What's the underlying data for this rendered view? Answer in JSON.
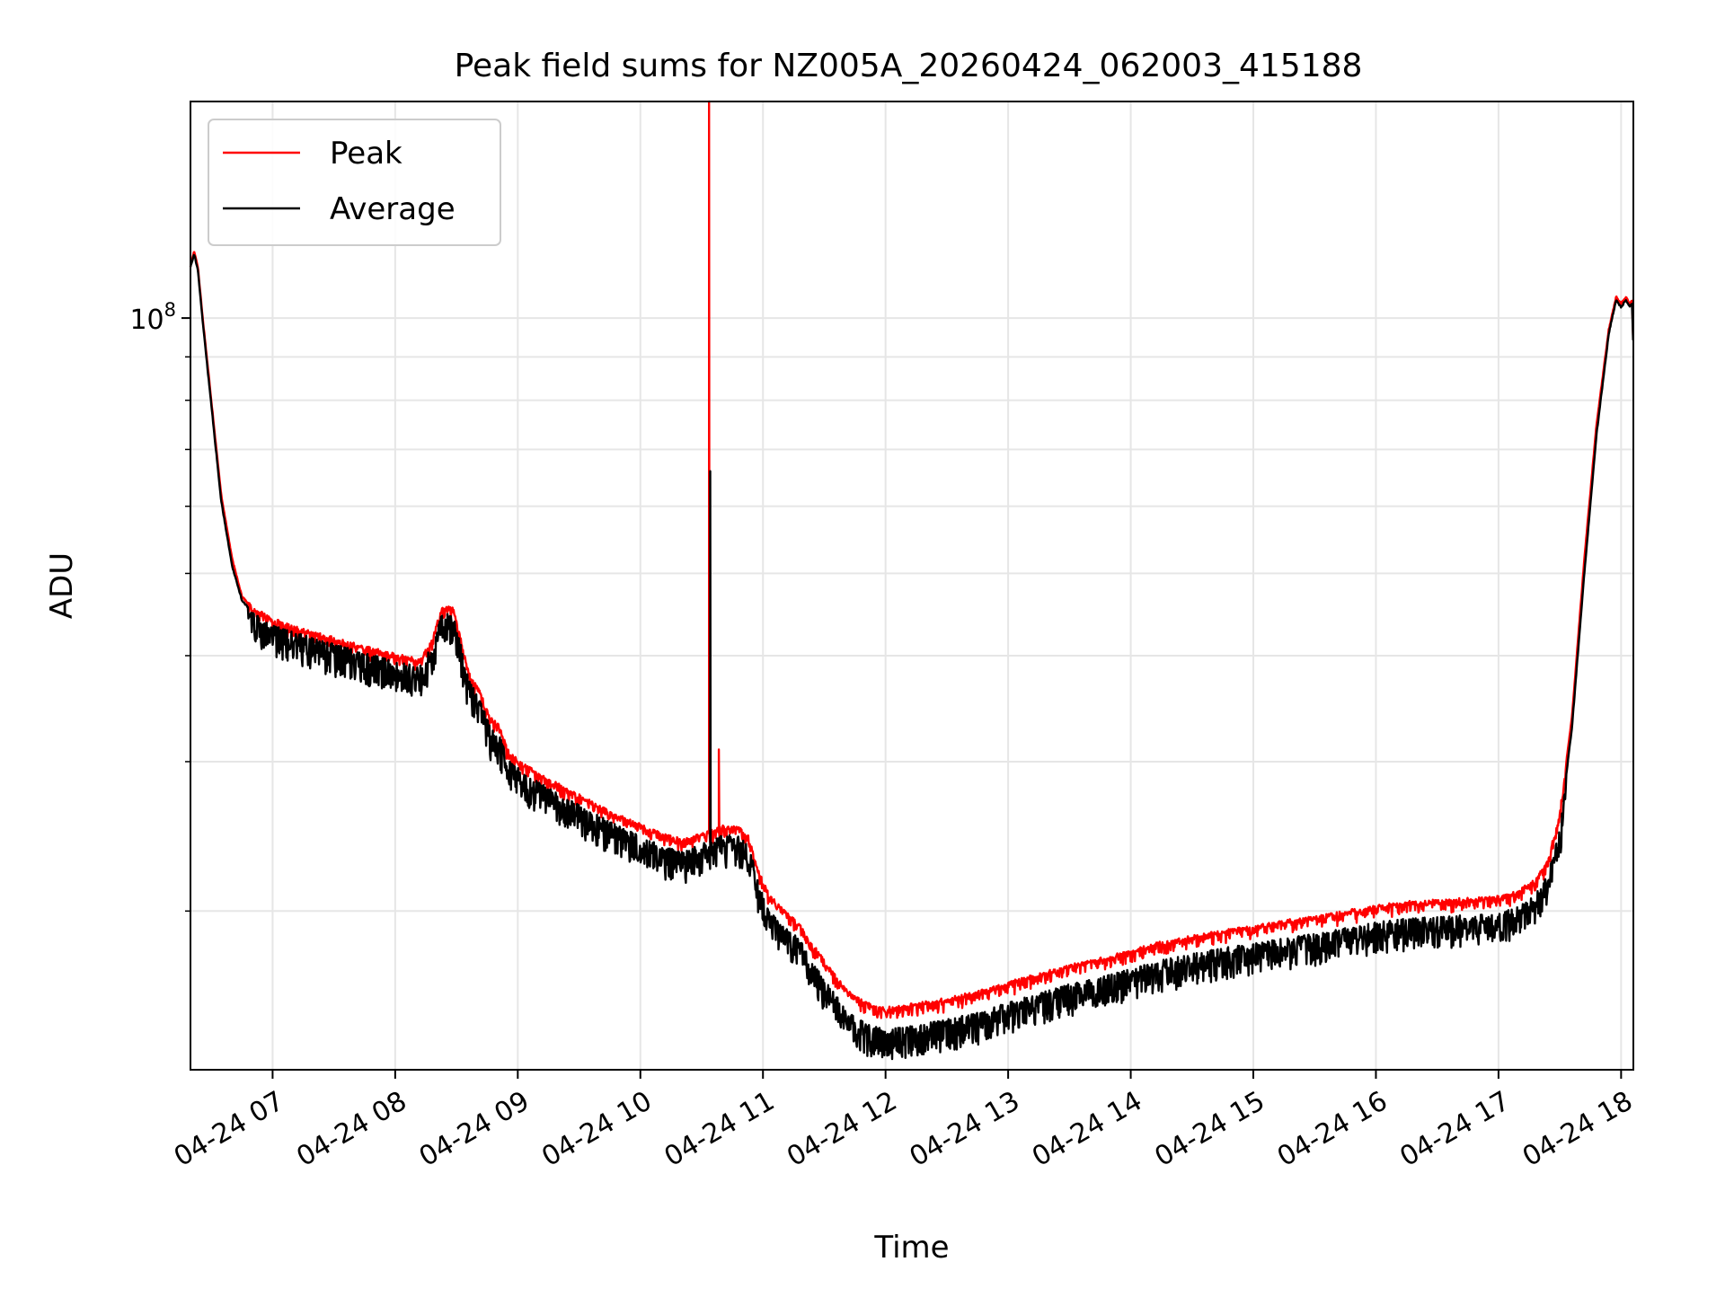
{
  "chart_data": {
    "type": "line",
    "title": "Peak field sums for NZ005A_20260424_062003_415188",
    "xlabel": "Time",
    "ylabel": "ADU",
    "y_scale": "log",
    "xlim_hours": [
      6.33,
      18.1
    ],
    "ylim": [
      13000000,
      180000000
    ],
    "x_ticks": [
      {
        "value": 7,
        "label": "04-24 07"
      },
      {
        "value": 8,
        "label": "04-24 08"
      },
      {
        "value": 9,
        "label": "04-24 09"
      },
      {
        "value": 10,
        "label": "04-24 10"
      },
      {
        "value": 11,
        "label": "04-24 11"
      },
      {
        "value": 12,
        "label": "04-24 12"
      },
      {
        "value": 13,
        "label": "04-24 13"
      },
      {
        "value": 14,
        "label": "04-24 14"
      },
      {
        "value": 15,
        "label": "04-24 15"
      },
      {
        "value": 16,
        "label": "04-24 16"
      },
      {
        "value": 17,
        "label": "04-24 17"
      },
      {
        "value": 18,
        "label": "04-24 18"
      }
    ],
    "y_major_ticks": [
      {
        "value": 100000000,
        "base": "10",
        "exp": "8"
      }
    ],
    "y_minor_ticks": [
      20000000,
      30000000,
      40000000,
      50000000,
      60000000,
      70000000,
      80000000,
      90000000
    ],
    "grid": true,
    "legend_position": "top-left",
    "series": [
      {
        "name": "Peak",
        "color": "#ff0000",
        "points": [
          [
            6.33,
            115000000
          ],
          [
            6.36,
            120000000
          ],
          [
            6.39,
            115000000
          ],
          [
            6.43,
            100000000
          ],
          [
            6.5,
            80000000
          ],
          [
            6.58,
            62000000
          ],
          [
            6.67,
            52000000
          ],
          [
            6.75,
            47000000
          ],
          [
            6.83,
            45500000
          ],
          [
            7.0,
            44000000
          ],
          [
            7.25,
            42800000
          ],
          [
            7.5,
            41800000
          ],
          [
            7.75,
            40800000
          ],
          [
            8.0,
            40000000
          ],
          [
            8.2,
            39400000
          ],
          [
            8.3,
            41500000
          ],
          [
            8.38,
            45500000
          ],
          [
            8.47,
            45500000
          ],
          [
            8.53,
            42000000
          ],
          [
            8.6,
            38000000
          ],
          [
            8.7,
            36000000
          ],
          [
            8.78,
            33600000
          ],
          [
            8.85,
            33000000
          ],
          [
            8.92,
            30800000
          ],
          [
            9.0,
            30000000
          ],
          [
            9.2,
            28800000
          ],
          [
            9.5,
            27300000
          ],
          [
            9.75,
            26100000
          ],
          [
            10.0,
            25200000
          ],
          [
            10.2,
            24500000
          ],
          [
            10.35,
            24200000
          ],
          [
            10.5,
            24600000
          ],
          [
            10.6,
            24800000
          ],
          [
            10.67,
            25100000
          ],
          [
            10.8,
            25000000
          ],
          [
            10.88,
            24400000
          ],
          [
            10.95,
            22500000
          ],
          [
            11.05,
            20800000
          ],
          [
            11.3,
            19200000
          ],
          [
            11.5,
            17400000
          ],
          [
            11.7,
            16000000
          ],
          [
            11.85,
            15500000
          ],
          [
            12.0,
            15300000
          ],
          [
            12.25,
            15500000
          ],
          [
            12.5,
            15700000
          ],
          [
            12.75,
            16000000
          ],
          [
            13.0,
            16400000
          ],
          [
            13.25,
            16800000
          ],
          [
            13.5,
            17200000
          ],
          [
            13.75,
            17500000
          ],
          [
            14.0,
            17900000
          ],
          [
            14.25,
            18300000
          ],
          [
            14.5,
            18600000
          ],
          [
            14.75,
            18900000
          ],
          [
            15.0,
            19100000
          ],
          [
            15.25,
            19400000
          ],
          [
            15.5,
            19600000
          ],
          [
            15.75,
            19900000
          ],
          [
            16.0,
            20200000
          ],
          [
            16.25,
            20400000
          ],
          [
            16.5,
            20500000
          ],
          [
            16.75,
            20600000
          ],
          [
            17.0,
            20700000
          ],
          [
            17.15,
            21000000
          ],
          [
            17.3,
            21700000
          ],
          [
            17.4,
            22800000
          ],
          [
            17.5,
            26000000
          ],
          [
            17.6,
            34000000
          ],
          [
            17.7,
            52000000
          ],
          [
            17.8,
            75000000
          ],
          [
            17.9,
            97000000
          ],
          [
            17.96,
            106000000
          ],
          [
            18.0,
            104000000
          ],
          [
            18.04,
            106000000
          ],
          [
            18.07,
            104000000
          ],
          [
            18.09,
            105000000
          ],
          [
            18.1,
            92000000
          ]
        ],
        "spikes": [
          {
            "x": 10.56,
            "y": 180000000
          },
          {
            "x": 10.64,
            "y": 31000000
          }
        ]
      },
      {
        "name": "Average",
        "color": "#000000",
        "points": [
          [
            6.33,
            115000000
          ],
          [
            6.36,
            119000000
          ],
          [
            6.39,
            114000000
          ],
          [
            6.43,
            99000000
          ],
          [
            6.5,
            79000000
          ],
          [
            6.58,
            61000000
          ],
          [
            6.67,
            51000000
          ],
          [
            6.75,
            46500000
          ],
          [
            6.83,
            45000000
          ],
          [
            7.0,
            43500000
          ],
          [
            7.25,
            42300000
          ],
          [
            7.5,
            41300000
          ],
          [
            7.75,
            40300000
          ],
          [
            8.0,
            39400000
          ],
          [
            8.2,
            38900000
          ],
          [
            8.3,
            41000000
          ],
          [
            8.38,
            44800000
          ],
          [
            8.47,
            44800000
          ],
          [
            8.53,
            41500000
          ],
          [
            8.6,
            37500000
          ],
          [
            8.7,
            35300000
          ],
          [
            8.78,
            32800000
          ],
          [
            8.85,
            32300000
          ],
          [
            8.92,
            30200000
          ],
          [
            9.0,
            29500000
          ],
          [
            9.2,
            28200000
          ],
          [
            9.5,
            26700000
          ],
          [
            9.75,
            25500000
          ],
          [
            10.0,
            24500000
          ],
          [
            10.2,
            23800000
          ],
          [
            10.35,
            23500000
          ],
          [
            10.5,
            24000000
          ],
          [
            10.6,
            24300000
          ],
          [
            10.67,
            24600000
          ],
          [
            10.8,
            24500000
          ],
          [
            10.88,
            24000000
          ],
          [
            10.95,
            22000000
          ],
          [
            11.05,
            20000000
          ],
          [
            11.3,
            18500000
          ],
          [
            11.5,
            16600000
          ],
          [
            11.7,
            15200000
          ],
          [
            11.85,
            14700000
          ],
          [
            12.0,
            14500000
          ],
          [
            12.25,
            14700000
          ],
          [
            12.5,
            14900000
          ],
          [
            12.75,
            15200000
          ],
          [
            13.0,
            15600000
          ],
          [
            13.25,
            16000000
          ],
          [
            13.5,
            16400000
          ],
          [
            13.75,
            16700000
          ],
          [
            14.0,
            17100000
          ],
          [
            14.25,
            17500000
          ],
          [
            14.5,
            17800000
          ],
          [
            14.75,
            18100000
          ],
          [
            15.0,
            18300000
          ],
          [
            15.25,
            18600000
          ],
          [
            15.5,
            18800000
          ],
          [
            15.75,
            19100000
          ],
          [
            16.0,
            19400000
          ],
          [
            16.25,
            19600000
          ],
          [
            16.5,
            19700000
          ],
          [
            16.75,
            19800000
          ],
          [
            17.0,
            19900000
          ],
          [
            17.15,
            20200000
          ],
          [
            17.3,
            20900000
          ],
          [
            17.4,
            22000000
          ],
          [
            17.5,
            25000000
          ],
          [
            17.6,
            33000000
          ],
          [
            17.7,
            50000000
          ],
          [
            17.8,
            73000000
          ],
          [
            17.9,
            96000000
          ],
          [
            17.96,
            105000000
          ],
          [
            18.0,
            103000000
          ],
          [
            18.04,
            105000000
          ],
          [
            18.07,
            103000000
          ],
          [
            18.09,
            104000000
          ],
          [
            18.1,
            91000000
          ]
        ],
        "spikes": [
          {
            "x": 10.57,
            "y": 66000000
          }
        ]
      }
    ]
  }
}
